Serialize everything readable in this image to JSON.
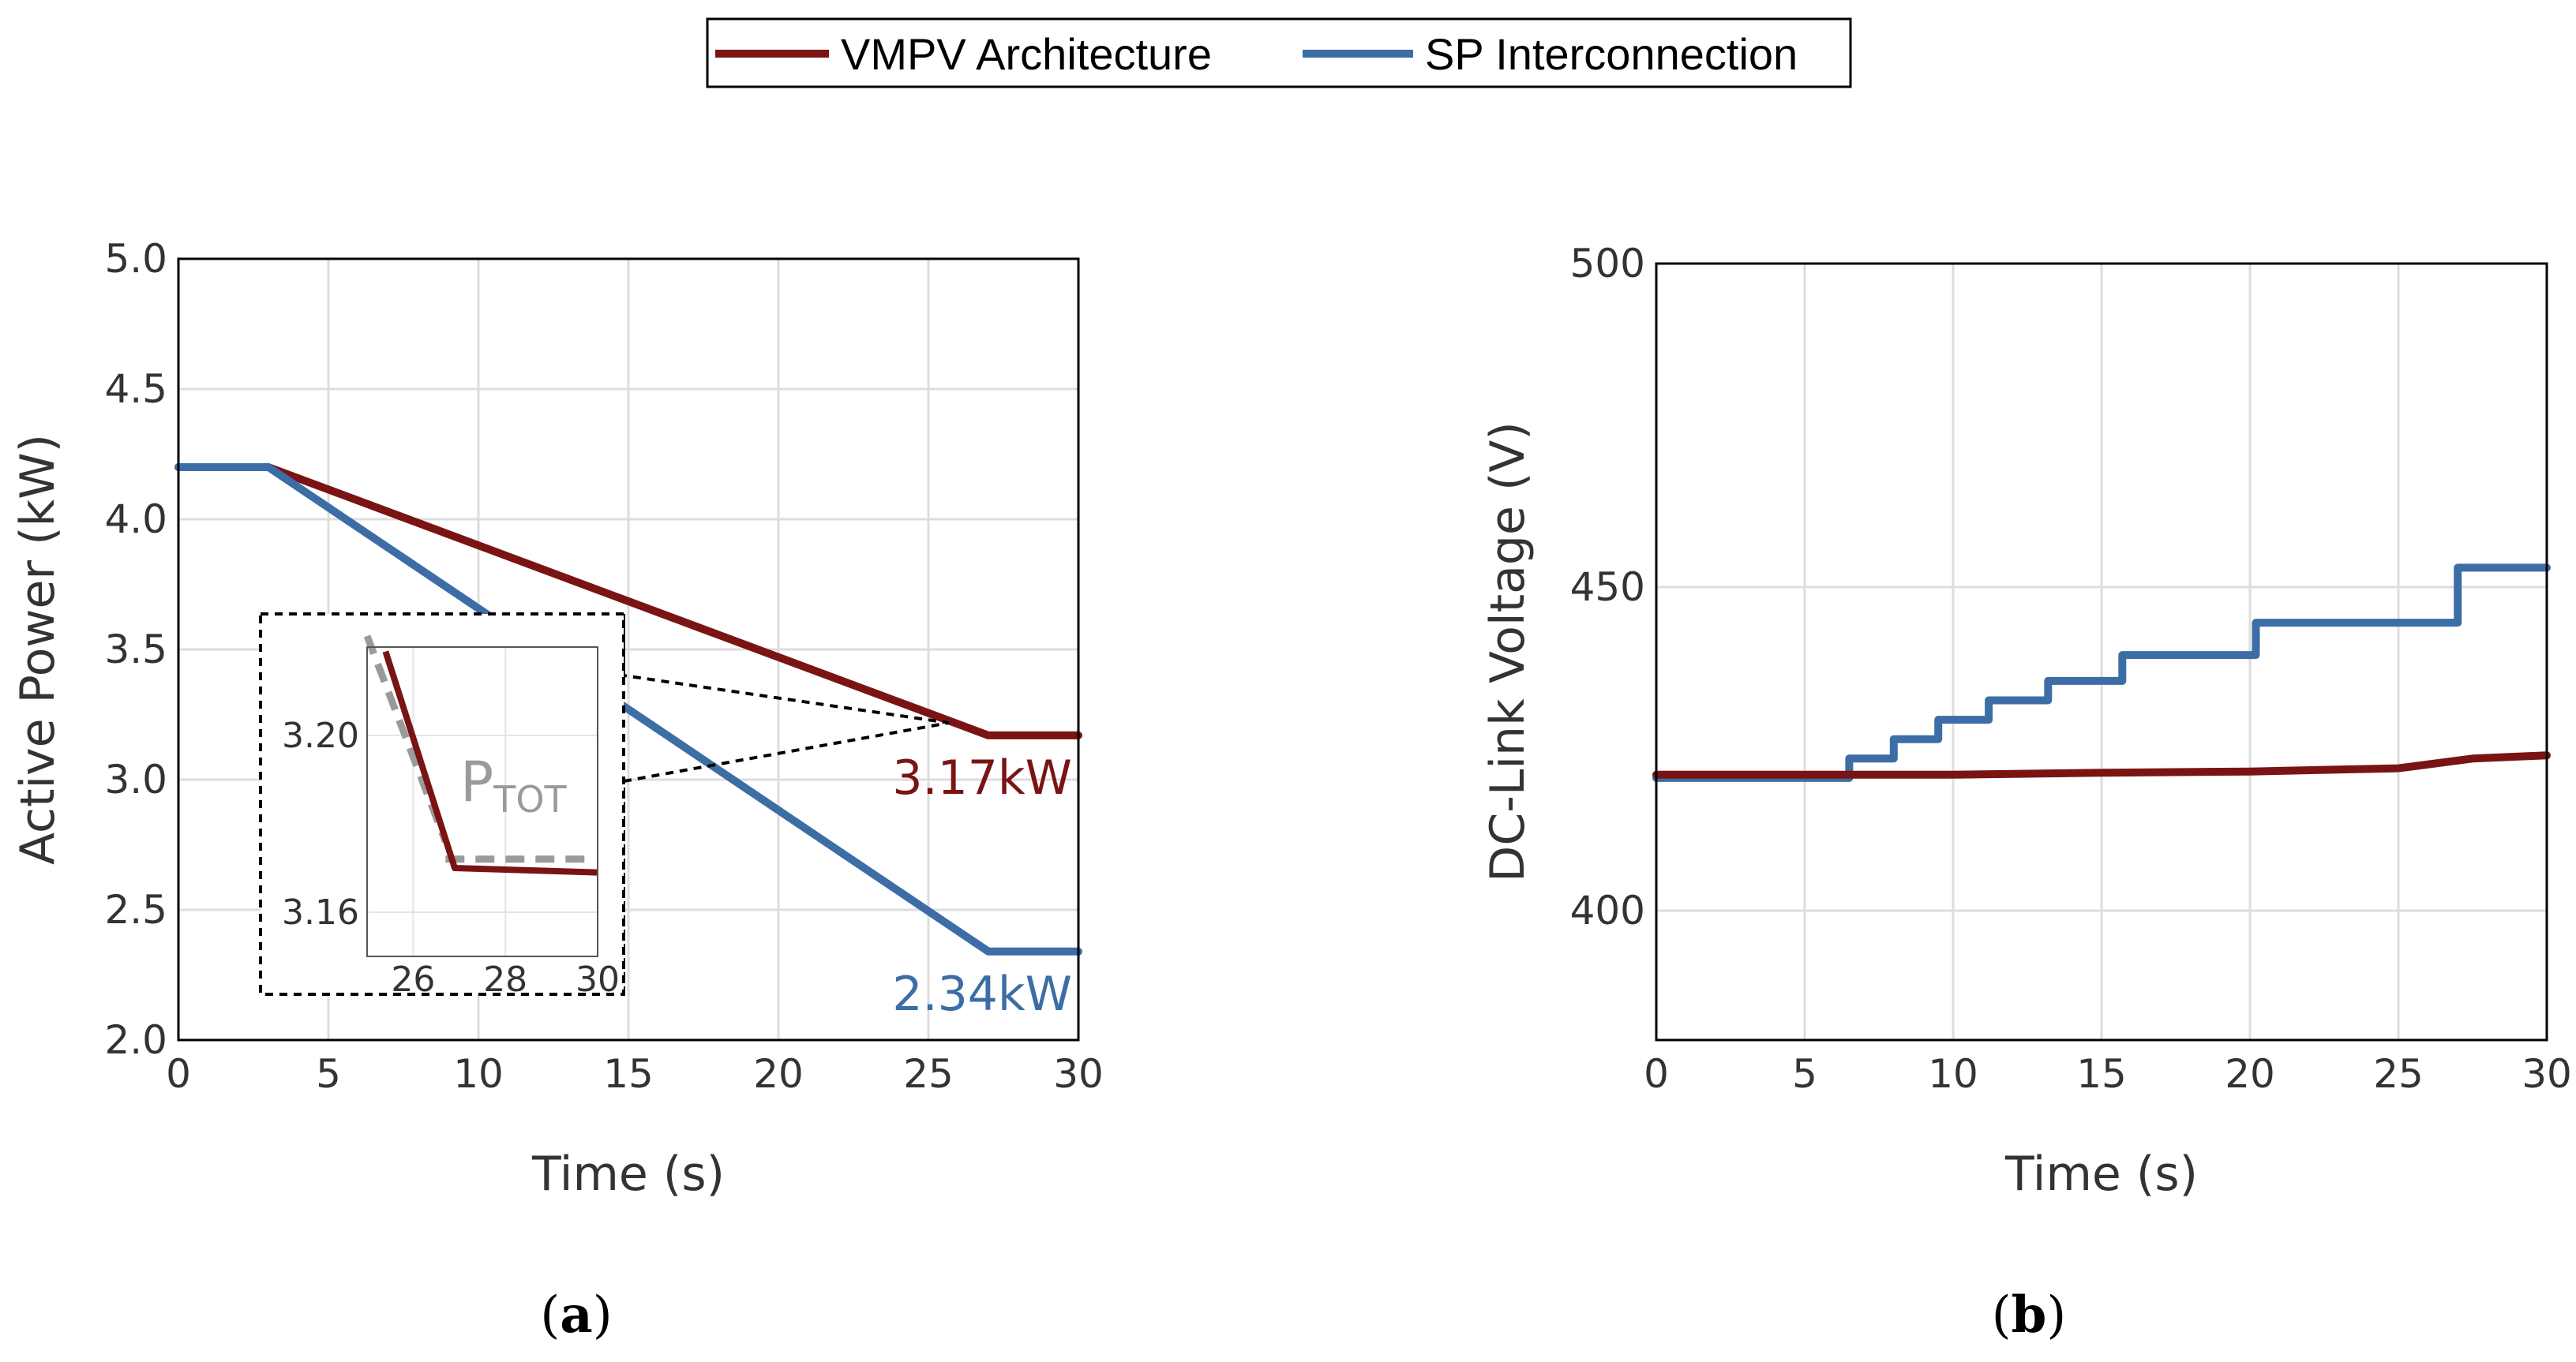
{
  "colors": {
    "vmpv": "#7a1414",
    "sp": "#3c6ea5",
    "ptot": "#9a9a9a",
    "grid": "#dddddd",
    "text": "#333333"
  },
  "legend": {
    "items": [
      {
        "label": "VMPV Architecture",
        "color": "#7a1414"
      },
      {
        "label": "SP Interconnection",
        "color": "#3c6ea5"
      }
    ]
  },
  "chart_data": [
    {
      "id": "a",
      "type": "line",
      "panel_label": "a",
      "xlabel": "Time (s)",
      "ylabel": "Active Power (kW)",
      "xlim": [
        0,
        30
      ],
      "ylim": [
        2.0,
        5.0
      ],
      "xticks": [
        "0",
        "5",
        "10",
        "15",
        "20",
        "25",
        "30"
      ],
      "yticks": [
        "2.0",
        "2.5",
        "3.0",
        "3.5",
        "4.0",
        "4.5",
        "5.0"
      ],
      "grid": true,
      "series": [
        {
          "name": "VMPV Architecture",
          "x": [
            0,
            3,
            27,
            30
          ],
          "y": [
            4.2,
            4.2,
            3.17,
            3.17
          ]
        },
        {
          "name": "SP Interconnection",
          "x": [
            0,
            3,
            27,
            30
          ],
          "y": [
            4.2,
            4.2,
            2.34,
            2.34
          ]
        }
      ],
      "annotations": [
        {
          "text": "3.17kW",
          "series": "VMPV Architecture",
          "x": 26.5,
          "y": 3.17
        },
        {
          "text": "2.34kW",
          "series": "SP Interconnection",
          "x": 26.5,
          "y": 2.34
        }
      ],
      "inset": {
        "xlim": [
          25,
          30
        ],
        "ylim": [
          3.15,
          3.22
        ],
        "xticks": [
          "26",
          "28",
          "30"
        ],
        "yticks": [
          "3.16",
          "3.20"
        ],
        "vmpv": {
          "x": [
            25.4,
            26.9,
            30
          ],
          "y": [
            3.219,
            3.17,
            3.169
          ]
        },
        "ptot_level": 3.172,
        "ptot_label": "P",
        "ptot_sub": "TOT"
      }
    },
    {
      "id": "b",
      "type": "line",
      "panel_label": "b",
      "xlabel": "Time (s)",
      "ylabel": "DC-Link Voltage (V)",
      "xlim": [
        0,
        30
      ],
      "ylim": [
        380,
        500
      ],
      "xticks": [
        "0",
        "5",
        "10",
        "15",
        "20",
        "25",
        "30"
      ],
      "yticks": [
        "400",
        "450",
        "500"
      ],
      "grid": true,
      "series": [
        {
          "name": "SP Interconnection",
          "x": [
            0,
            6.5,
            6.5,
            8.0,
            8.0,
            9.5,
            9.5,
            11.2,
            11.2,
            13.2,
            13.2,
            15.7,
            15.7,
            20.2,
            20.2,
            27.0,
            27.0,
            30
          ],
          "y": [
            420.5,
            420.5,
            423.5,
            423.5,
            426.5,
            426.5,
            429.5,
            429.5,
            432.5,
            432.5,
            435.5,
            435.5,
            439.5,
            439.5,
            444.5,
            444.5,
            453,
            453
          ]
        },
        {
          "name": "VMPV Architecture",
          "x": [
            0,
            5,
            10,
            15,
            20,
            25,
            27.5,
            30
          ],
          "y": [
            421,
            421,
            421,
            421.3,
            421.5,
            422,
            423.5,
            424
          ]
        }
      ]
    }
  ]
}
